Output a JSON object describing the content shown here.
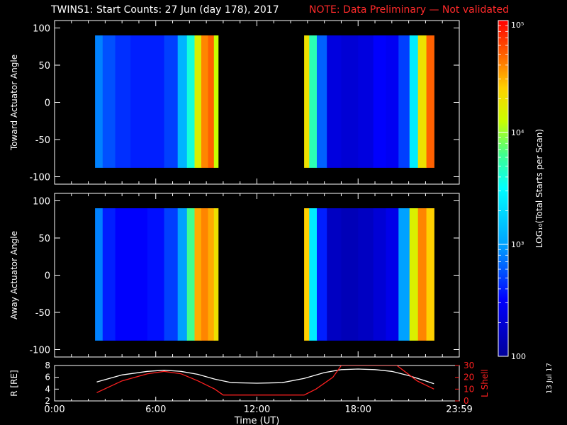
{
  "title": {
    "main": "TWINS1: Start Counts: 27 Jun (day 178), 2017",
    "note": "NOTE: Data Preliminary — Not validated"
  },
  "side_date": "13 Jul 17",
  "colors": {
    "background": "#000000",
    "axis": "#ffffff",
    "note": "#ff2a2a",
    "radius_line": "#ffffff",
    "lshell_line": "#ff2020"
  },
  "chart_data": [
    {
      "type": "heatmap",
      "panel": "toward",
      "ylabel": "Toward Actuator Angle",
      "xlim": [
        0,
        24
      ],
      "ylim": [
        -110,
        110
      ],
      "yticks": [
        "100",
        "50",
        "0",
        "-50",
        "-100"
      ],
      "yticks_values": [
        100,
        50,
        0,
        -50,
        -100
      ],
      "data_blocks": [
        {
          "x_start": 2.4,
          "x_end": 9.7,
          "y_start": -88,
          "y_end": 90
        },
        {
          "x_start": 14.8,
          "x_end": 22.5,
          "y_start": -88,
          "y_end": 90
        }
      ],
      "columns": [
        {
          "x": 2.5,
          "log_counts": 2.9
        },
        {
          "x": 3.2,
          "log_counts": 2.75
        },
        {
          "x": 4.0,
          "log_counts": 2.65
        },
        {
          "x": 5.0,
          "log_counts": 2.6
        },
        {
          "x": 6.0,
          "log_counts": 2.6
        },
        {
          "x": 7.0,
          "log_counts": 2.7
        },
        {
          "x": 7.6,
          "log_counts": 3.1
        },
        {
          "x": 8.1,
          "log_counts": 3.6
        },
        {
          "x": 8.5,
          "log_counts": 4.2
        },
        {
          "x": 8.9,
          "log_counts": 4.6
        },
        {
          "x": 9.3,
          "log_counts": 4.7
        },
        {
          "x": 9.6,
          "log_counts": 4.1
        },
        {
          "x": 14.9,
          "log_counts": 4.3
        },
        {
          "x": 15.3,
          "log_counts": 3.7
        },
        {
          "x": 15.8,
          "log_counts": 2.8
        },
        {
          "x": 16.5,
          "log_counts": 2.35
        },
        {
          "x": 17.5,
          "log_counts": 2.3
        },
        {
          "x": 18.5,
          "log_counts": 2.35
        },
        {
          "x": 19.3,
          "log_counts": 2.5
        },
        {
          "x": 20.0,
          "log_counts": 2.45
        },
        {
          "x": 20.8,
          "log_counts": 2.7
        },
        {
          "x": 21.3,
          "log_counts": 3.4
        },
        {
          "x": 21.8,
          "log_counts": 4.3
        },
        {
          "x": 22.3,
          "log_counts": 4.7
        }
      ]
    },
    {
      "type": "heatmap",
      "panel": "away",
      "ylabel": "Away Actuator Angle",
      "xlim": [
        0,
        24
      ],
      "ylim": [
        -110,
        110
      ],
      "yticks": [
        "100",
        "50",
        "0",
        "-50",
        "-100"
      ],
      "yticks_values": [
        100,
        50,
        0,
        -50,
        -100
      ],
      "data_blocks": [
        {
          "x_start": 2.4,
          "x_end": 9.7,
          "y_start": -88,
          "y_end": 90
        },
        {
          "x_start": 14.8,
          "x_end": 22.5,
          "y_start": -88,
          "y_end": 90
        }
      ],
      "columns": [
        {
          "x": 2.5,
          "log_counts": 2.9
        },
        {
          "x": 3.2,
          "log_counts": 2.6
        },
        {
          "x": 4.0,
          "log_counts": 2.5
        },
        {
          "x": 5.0,
          "log_counts": 2.5
        },
        {
          "x": 6.0,
          "log_counts": 2.55
        },
        {
          "x": 7.0,
          "log_counts": 2.7
        },
        {
          "x": 7.6,
          "log_counts": 3.0
        },
        {
          "x": 8.1,
          "log_counts": 3.8
        },
        {
          "x": 8.5,
          "log_counts": 4.5
        },
        {
          "x": 8.9,
          "log_counts": 4.6
        },
        {
          "x": 9.3,
          "log_counts": 4.5
        },
        {
          "x": 9.6,
          "log_counts": 4.3
        },
        {
          "x": 14.9,
          "log_counts": 4.4
        },
        {
          "x": 15.3,
          "log_counts": 3.4
        },
        {
          "x": 15.8,
          "log_counts": 2.6
        },
        {
          "x": 16.5,
          "log_counts": 2.2
        },
        {
          "x": 17.5,
          "log_counts": 2.15
        },
        {
          "x": 18.5,
          "log_counts": 2.2
        },
        {
          "x": 19.3,
          "log_counts": 2.3
        },
        {
          "x": 20.0,
          "log_counts": 2.4
        },
        {
          "x": 20.8,
          "log_counts": 3.0
        },
        {
          "x": 21.3,
          "log_counts": 4.2
        },
        {
          "x": 21.8,
          "log_counts": 4.6
        },
        {
          "x": 22.3,
          "log_counts": 4.4
        }
      ]
    },
    {
      "type": "line",
      "panel": "orbit",
      "xlabel": "Time (UT)",
      "xlim": [
        0,
        24
      ],
      "xticks": [
        "0:00",
        "6:00",
        "12:00",
        "18:00",
        "23:59"
      ],
      "xticks_values": [
        0,
        6,
        12,
        18,
        24
      ],
      "left_axis": {
        "label": "R [RE]",
        "ylim": [
          2,
          8
        ],
        "yticks": [
          "2",
          "4",
          "6",
          "8"
        ],
        "yticks_values": [
          2,
          4,
          6,
          8
        ]
      },
      "right_axis": {
        "label": "L Shell",
        "ylim": [
          0,
          30
        ],
        "yticks": [
          "0",
          "10",
          "20",
          "30"
        ],
        "yticks_values": [
          0,
          10,
          20,
          30
        ]
      },
      "series": [
        {
          "axis": "left",
          "color": "#ffffff",
          "x": [
            2.5,
            4,
            5.5,
            6.5,
            7.5,
            8.5,
            9.5,
            10.5,
            12,
            13.5,
            14.8,
            16,
            17,
            18,
            19,
            20,
            21,
            22,
            22.5
          ],
          "y": [
            5.2,
            6.4,
            7.0,
            7.2,
            7.0,
            6.5,
            5.7,
            5.1,
            5.0,
            5.1,
            5.8,
            6.8,
            7.3,
            7.4,
            7.3,
            7.0,
            6.3,
            5.4,
            4.9
          ]
        },
        {
          "axis": "right",
          "color": "#ff2020",
          "x": [
            2.5,
            4,
            5.5,
            6.5,
            7.5,
            8.5,
            9.5,
            10,
            12,
            13,
            14.8,
            15.5,
            16.5,
            17.0,
            20.3,
            21.5,
            22.5
          ],
          "y": [
            7,
            17,
            23,
            25,
            23,
            17,
            10,
            5,
            5,
            5,
            5,
            10,
            20,
            30,
            30,
            17,
            10
          ]
        }
      ]
    }
  ],
  "colorbar": {
    "label": "LOG₁₀(Total Starts per Scan)",
    "range_log": [
      2,
      5
    ],
    "tick_labels": [
      "10⁵",
      "10⁴",
      "10³",
      "100"
    ],
    "tick_values": [
      100000,
      10000,
      1000,
      100
    ],
    "tick_log": [
      5,
      4,
      3,
      2
    ]
  }
}
